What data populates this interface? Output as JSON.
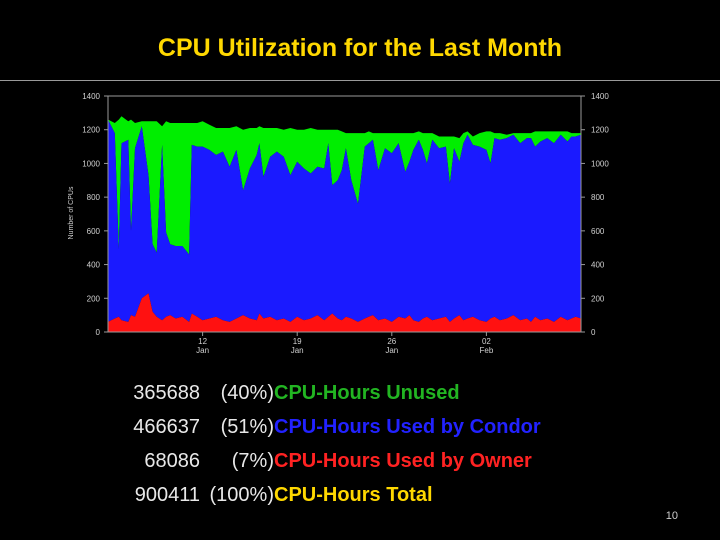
{
  "title": "CPU Utilization for the Last Month",
  "page_number": "10",
  "colors": {
    "unused": "#00ee00",
    "condor": "#1a1aff",
    "owner": "#ff1111",
    "total": "#ffd800",
    "text": "#e8e8e8"
  },
  "stats": [
    {
      "value": "365688",
      "percent": "(40%)",
      "label": "CPU-Hours Unused",
      "color": "#22b522"
    },
    {
      "value": "466637",
      "percent": "(51%)",
      "label": "CPU-Hours Used by Condor",
      "color": "#2222ff"
    },
    {
      "value": "68086",
      "percent": "(7%)",
      "label": "CPU-Hours Used by Owner",
      "color": "#ff2222"
    },
    {
      "value": "900411",
      "percent": "(100%)",
      "label": "CPU-Hours Total",
      "color": "#ffd800"
    }
  ],
  "chart_data": {
    "type": "area",
    "title": "",
    "xlabel": "",
    "ylabel": "Number of CPUs",
    "ylim": [
      0,
      1400
    ],
    "yticks": [
      0,
      200,
      400,
      600,
      800,
      1000,
      1200,
      1400
    ],
    "xlim": [
      0,
      35
    ],
    "xticks": [
      {
        "x": 7,
        "label1": "12",
        "label2": "Jan"
      },
      {
        "x": 14,
        "label1": "19",
        "label2": "Jan"
      },
      {
        "x": 21,
        "label1": "26",
        "label2": "Jan"
      },
      {
        "x": 28,
        "label1": "02",
        "label2": "Feb"
      }
    ],
    "grid": false,
    "stacked": true,
    "series_order": [
      "owner",
      "condor",
      "unused"
    ],
    "x": [
      0,
      0.5,
      0.8,
      1.0,
      1.5,
      1.7,
      2.0,
      2.5,
      3.0,
      3.3,
      3.6,
      4.0,
      4.3,
      4.6,
      5.0,
      5.5,
      6.0,
      6.2,
      6.6,
      7.0,
      7.5,
      8.0,
      8.5,
      9.0,
      9.5,
      10.0,
      10.5,
      11.0,
      11.2,
      11.5,
      12.0,
      12.5,
      13.0,
      13.5,
      14.0,
      14.5,
      15.0,
      15.5,
      16.0,
      16.3,
      16.6,
      17.0,
      17.3,
      17.6,
      18.0,
      18.5,
      19.0,
      19.3,
      19.6,
      20.0,
      20.5,
      21.0,
      21.5,
      22.0,
      22.3,
      22.6,
      23.0,
      23.3,
      23.6,
      24.0,
      24.5,
      25.0,
      25.3,
      25.6,
      26.0,
      26.3,
      26.6,
      27.0,
      27.5,
      28.0,
      28.3,
      28.6,
      29.0,
      29.5,
      30.0,
      30.5,
      31.0,
      31.3,
      31.6,
      32.0,
      32.5,
      33.0,
      33.5,
      34.0,
      34.3,
      34.6,
      35.0
    ],
    "series": [
      {
        "name": "CPU-Hours Used by Owner",
        "key": "owner",
        "values": [
          60,
          80,
          90,
          70,
          60,
          100,
          90,
          200,
          230,
          120,
          90,
          70,
          90,
          100,
          80,
          90,
          60,
          110,
          90,
          70,
          80,
          90,
          70,
          60,
          80,
          100,
          80,
          70,
          110,
          80,
          90,
          70,
          80,
          60,
          90,
          70,
          80,
          100,
          70,
          90,
          110,
          80,
          70,
          90,
          80,
          60,
          80,
          90,
          100,
          70,
          80,
          60,
          90,
          80,
          100,
          70,
          60,
          80,
          90,
          70,
          80,
          90,
          60,
          80,
          100,
          70,
          80,
          90,
          70,
          60,
          80,
          90,
          70,
          80,
          100,
          70,
          80,
          60,
          90,
          70,
          80,
          60,
          90,
          70,
          80,
          90,
          80
        ]
      },
      {
        "name": "CPU-Hours Used by Condor",
        "key": "condor",
        "values": [
          1200,
          1100,
          400,
          1050,
          1080,
          500,
          1000,
          1020,
          700,
          400,
          380,
          1040,
          500,
          420,
          430,
          420,
          400,
          1000,
          1010,
          1030,
          1000,
          960,
          1000,
          920,
          1000,
          740,
          890,
          980,
          1010,
          840,
          950,
          1000,
          960,
          870,
          920,
          900,
          860,
          880,
          900,
          1030,
          760,
          820,
          890,
          1000,
          820,
          700,
          1020,
          1030,
          1040,
          890,
          1010,
          1000,
          1030,
          870,
          910,
          1010,
          1080,
          1000,
          910,
          1070,
          1010,
          1010,
          820,
          1010,
          910,
          1050,
          1090,
          1020,
          1030,
          1020,
          920,
          1060,
          1070,
          1070,
          1070,
          1050,
          1070,
          1090,
          1010,
          1060,
          1070,
          1060,
          1080,
          1060,
          1080,
          1070,
          1090
        ]
      },
      {
        "name": "CPU-Hours Unused",
        "key": "unused",
        "values": [
          0,
          60,
          770,
          160,
          110,
          660,
          150,
          30,
          320,
          730,
          780,
          110,
          660,
          720,
          730,
          730,
          780,
          130,
          140,
          150,
          150,
          160,
          140,
          230,
          140,
          360,
          240,
          160,
          100,
          290,
          170,
          140,
          160,
          280,
          190,
          230,
          270,
          220,
          230,
          80,
          330,
          300,
          230,
          90,
          280,
          420,
          80,
          70,
          40,
          220,
          90,
          120,
          60,
          230,
          170,
          100,
          50,
          100,
          180,
          40,
          70,
          60,
          280,
          70,
          140,
          60,
          20,
          50,
          80,
          110,
          190,
          30,
          40,
          20,
          10,
          60,
          30,
          30,
          90,
          60,
          40,
          70,
          20,
          60,
          20,
          20,
          10
        ]
      }
    ]
  }
}
